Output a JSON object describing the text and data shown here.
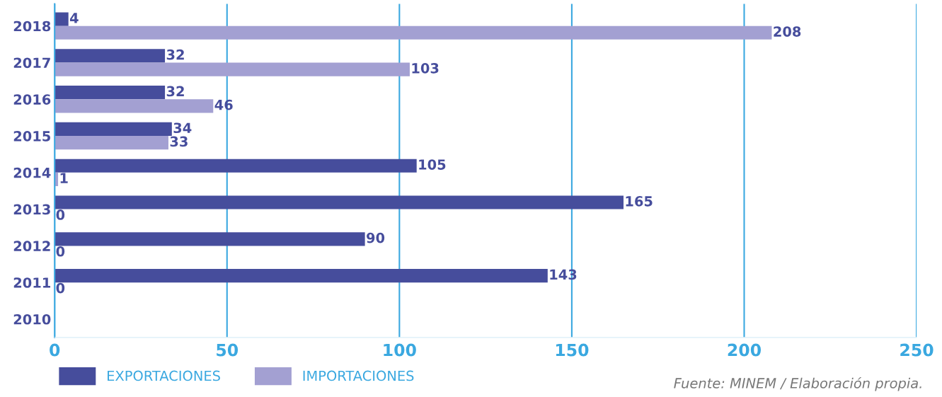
{
  "chart_data": {
    "type": "bar",
    "orientation": "horizontal",
    "categories": [
      "2018",
      "2017",
      "2016",
      "2015",
      "2014",
      "2013",
      "2012",
      "2011",
      "2010"
    ],
    "series": [
      {
        "name": "EXPORTACIONES",
        "color": "#464d9c",
        "values": [
          4,
          32,
          32,
          34,
          105,
          165,
          90,
          143,
          null
        ]
      },
      {
        "name": "IMPORTACIONES",
        "color": "#a3a0d2",
        "values": [
          208,
          103,
          46,
          33,
          1,
          0,
          0,
          0,
          null
        ]
      }
    ],
    "xlim": [
      0,
      250
    ],
    "xticks": [
      0,
      50,
      100,
      150,
      200,
      250
    ],
    "grid": "x",
    "data_labels": true,
    "legend": "bottom left",
    "annotations": [
      "Fuente: MINEM / Elaboración propia."
    ]
  }
}
